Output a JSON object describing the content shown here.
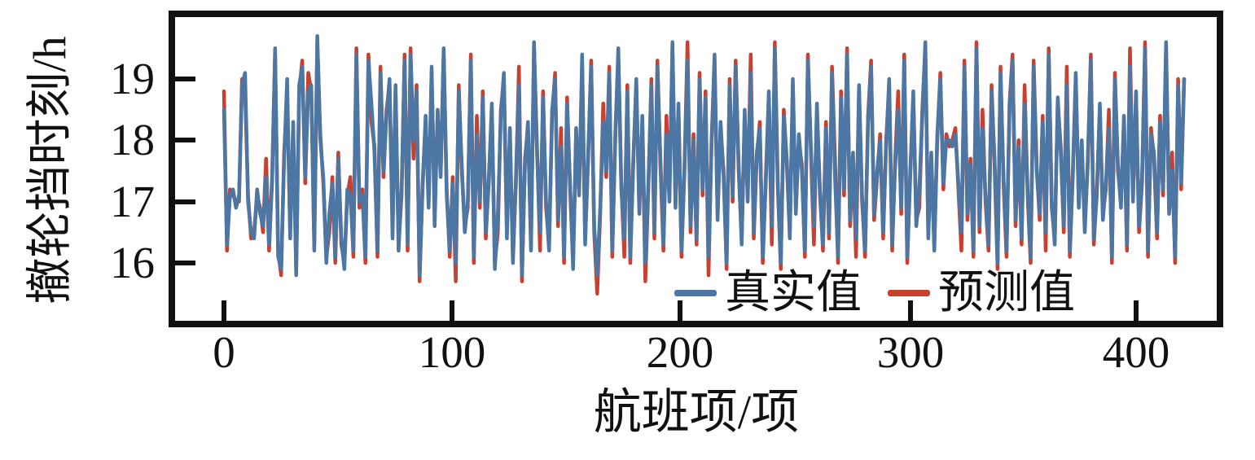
{
  "chart_data": {
    "type": "line",
    "title": "",
    "xlabel": "航班项/项",
    "ylabel": "撤轮挡时刻/h",
    "xticks": [
      0,
      100,
      200,
      300,
      400
    ],
    "yticks": [
      19,
      18,
      17,
      16
    ],
    "x_range": [
      0,
      421
    ],
    "ylim": [
      15.0,
      20.1
    ],
    "grid": false,
    "legend_position": "lower-right-inside",
    "axis_color": "#111111",
    "series": [
      {
        "id": "true",
        "name": "真实值",
        "color": "#4c77a4",
        "values": [
          18.5,
          16.3,
          17.1,
          17.2,
          16.9,
          17.1,
          18.9,
          19.1,
          17.0,
          16.5,
          16.4,
          17.2,
          16.8,
          16.6,
          17.4,
          16.3,
          17.3,
          19.5,
          16.1,
          15.9,
          17.7,
          19.0,
          16.4,
          18.3,
          15.8,
          18.9,
          19.2,
          17.4,
          18.8,
          18.9,
          16.2,
          19.7,
          18.0,
          17.4,
          16.0,
          16.8,
          17.3,
          16.1,
          17.7,
          16.4,
          15.9,
          17.2,
          17.1,
          16.2,
          19.4,
          17.0,
          17.1,
          16.1,
          19.3,
          18.6,
          17.8,
          16.2,
          19.1,
          17.5,
          18.4,
          19.0,
          16.4,
          18.9,
          16.2,
          17.2,
          19.3,
          16.3,
          19.4,
          18.0,
          18.8,
          15.8,
          17.2,
          18.4,
          16.9,
          19.2,
          16.6,
          18.5,
          17.4,
          19.5,
          17.1,
          16.2,
          17.3,
          16.0,
          18.8,
          17.6,
          16.5,
          17.0,
          19.3,
          16.1,
          18.1,
          17.0,
          18.7,
          16.5,
          17.3,
          18.6,
          15.9,
          16.8,
          18.4,
          19.1,
          16.4,
          18.2,
          16.0,
          17.4,
          18.9,
          15.8,
          17.6,
          18.3,
          16.2,
          19.6,
          17.8,
          16.5,
          18.7,
          17.0,
          16.2,
          18.5,
          19.0,
          16.7,
          17.9,
          16.1,
          18.6,
          17.3,
          15.9,
          18.2,
          17.1,
          19.4,
          16.3,
          17.8,
          19.2,
          16.6,
          15.8,
          16.9,
          18.3,
          17.5,
          19.1,
          16.2,
          18.0,
          19.5,
          17.2,
          16.4,
          18.8,
          16.1,
          17.6,
          19.0,
          16.8,
          18.4,
          16.0,
          17.3,
          18.9,
          16.5,
          19.2,
          17.7,
          16.3,
          18.1,
          17.0,
          19.6,
          16.9,
          18.6,
          16.2,
          17.5,
          19.3,
          16.6,
          18.0,
          16.4,
          19.0,
          17.2,
          18.7,
          16.1,
          17.9,
          19.4,
          16.7,
          18.3,
          17.4,
          16.0,
          18.9,
          17.1,
          19.2,
          17.6,
          16.3,
          18.5,
          17.0,
          19.1,
          16.5,
          17.8,
          18.2,
          16.1,
          17.3,
          18.8,
          16.6,
          19.5,
          17.2,
          16.0,
          18.4,
          17.7,
          16.4,
          19.0,
          16.8,
          18.1,
          17.5,
          16.2,
          19.3,
          17.9,
          16.6,
          18.6,
          17.1,
          16.3,
          18.2,
          16.5,
          19.1,
          17.4,
          16.1,
          18.7,
          17.2,
          19.4,
          16.7,
          17.8,
          16.4,
          18.9,
          17.0,
          16.2,
          18.3,
          19.2,
          16.8,
          17.5,
          18.0,
          16.5,
          17.9,
          19.0,
          16.3,
          17.6,
          18.5,
          16.9,
          19.3,
          16.1,
          17.4,
          18.8,
          16.6,
          17.2,
          18.4,
          19.6,
          16.4,
          17.8,
          16.2,
          18.1,
          19.0,
          17.3,
          18.0,
          18.0,
          17.9,
          18.1,
          17.3,
          16.5,
          19.2,
          16.8,
          17.6,
          16.2,
          19.5,
          16.6,
          18.2,
          17.1,
          16.3,
          18.8,
          17.7,
          16.0,
          19.1,
          17.4,
          16.2,
          18.5,
          19.3,
          16.7,
          17.9,
          16.4,
          18.6,
          17.2,
          16.1,
          19.2,
          17.5,
          16.8,
          18.3,
          16.5,
          19.4,
          17.0,
          16.3,
          18.7,
          17.8,
          16.6,
          18.9,
          16.2,
          17.4,
          19.1,
          16.9,
          18.0,
          16.5,
          17.7,
          19.3,
          16.4,
          17.1,
          18.6,
          16.7,
          17.3,
          18.2,
          16.1,
          19.0,
          17.6,
          16.9,
          18.4,
          16.3,
          19.2,
          17.0,
          18.8,
          16.6,
          17.4,
          19.5,
          16.2,
          18.1,
          17.8,
          16.5,
          18.3,
          17.2,
          19.6,
          16.8,
          17.5,
          16.1,
          18.9,
          17.3,
          19.0
        ]
      },
      {
        "id": "pred",
        "name": "预测值",
        "color": "#c8402f",
        "values": [
          18.8,
          16.2,
          17.2,
          17.1,
          17.0,
          17.0,
          19.0,
          18.8,
          17.1,
          16.4,
          16.5,
          17.1,
          16.9,
          16.5,
          17.7,
          16.2,
          17.4,
          19.4,
          16.2,
          15.8,
          17.8,
          18.7,
          16.5,
          18.2,
          15.9,
          18.8,
          19.3,
          17.3,
          19.1,
          18.8,
          16.3,
          19.6,
          18.1,
          17.3,
          16.1,
          16.5,
          17.4,
          16.0,
          17.8,
          16.3,
          16.0,
          17.1,
          17.4,
          16.1,
          19.5,
          16.9,
          17.2,
          16.0,
          19.4,
          18.3,
          17.9,
          16.1,
          19.2,
          17.4,
          18.5,
          18.9,
          16.7,
          18.8,
          16.3,
          17.1,
          19.4,
          16.2,
          19.5,
          17.7,
          18.9,
          15.7,
          17.3,
          18.3,
          17.0,
          19.1,
          16.9,
          18.4,
          17.5,
          19.4,
          17.2,
          16.1,
          17.4,
          15.7,
          18.9,
          17.5,
          16.6,
          16.9,
          19.4,
          16.0,
          18.4,
          16.9,
          18.8,
          16.4,
          17.4,
          18.5,
          16.0,
          16.5,
          18.5,
          19.0,
          16.5,
          18.1,
          16.1,
          17.3,
          19.2,
          15.7,
          17.7,
          18.2,
          16.3,
          19.5,
          17.9,
          16.2,
          18.8,
          16.9,
          16.3,
          18.4,
          19.1,
          16.6,
          18.2,
          16.0,
          18.7,
          17.2,
          16.0,
          18.1,
          17.2,
          19.1,
          16.4,
          17.7,
          19.3,
          16.5,
          15.5,
          16.8,
          18.6,
          17.4,
          19.2,
          16.1,
          18.1,
          19.4,
          17.3,
          16.1,
          18.9,
          16.0,
          17.7,
          18.9,
          16.9,
          18.3,
          15.7,
          17.2,
          19.0,
          16.4,
          19.3,
          17.6,
          16.2,
          18.4,
          17.1,
          19.5,
          17.0,
          18.5,
          16.1,
          17.6,
          19.6,
          16.5,
          18.1,
          16.3,
          19.1,
          17.1,
          18.8,
          15.8,
          18.0,
          19.3,
          16.8,
          18.2,
          17.5,
          15.9,
          19.0,
          17.0,
          19.3,
          17.5,
          16.4,
          18.4,
          17.1,
          19.4,
          16.4,
          17.7,
          18.3,
          16.0,
          17.4,
          18.7,
          16.3,
          19.6,
          17.3,
          15.9,
          18.5,
          17.6,
          16.5,
          18.9,
          16.9,
          18.0,
          17.6,
          16.1,
          19.4,
          17.8,
          16.3,
          18.5,
          17.2,
          16.2,
          18.3,
          16.4,
          19.2,
          17.7,
          16.0,
          18.8,
          17.1,
          19.5,
          16.6,
          17.7,
          16.1,
          18.8,
          17.1,
          16.1,
          18.4,
          19.3,
          16.7,
          17.4,
          18.1,
          16.4,
          18.0,
          18.9,
          16.2,
          17.7,
          18.8,
          16.8,
          19.4,
          16.0,
          17.5,
          18.7,
          16.7,
          16.9,
          18.5,
          19.5,
          16.5,
          17.7,
          16.3,
          18.0,
          19.1,
          17.2,
          18.1,
          17.9,
          18.0,
          18.2,
          17.2,
          16.2,
          19.3,
          16.7,
          17.7,
          16.1,
          19.6,
          16.5,
          18.5,
          17.0,
          16.2,
          18.9,
          17.6,
          15.9,
          19.2,
          17.3,
          16.1,
          18.6,
          19.4,
          16.6,
          18.0,
          16.3,
          18.9,
          17.1,
          16.0,
          19.3,
          17.6,
          16.7,
          18.4,
          16.2,
          19.5,
          16.9,
          16.4,
          18.6,
          17.9,
          16.5,
          19.2,
          16.1,
          17.5,
          19.0,
          17.0,
          17.9,
          16.6,
          17.6,
          19.4,
          16.3,
          17.2,
          18.5,
          16.8,
          17.2,
          18.5,
          16.0,
          19.1,
          17.5,
          17.0,
          18.3,
          16.2,
          19.5,
          17.1,
          18.7,
          16.5,
          17.3,
          19.6,
          16.1,
          18.2,
          17.7,
          16.4,
          18.4,
          17.1,
          19.5,
          16.9,
          17.8,
          16.0,
          19.0,
          17.2,
          19.0
        ]
      }
    ]
  }
}
